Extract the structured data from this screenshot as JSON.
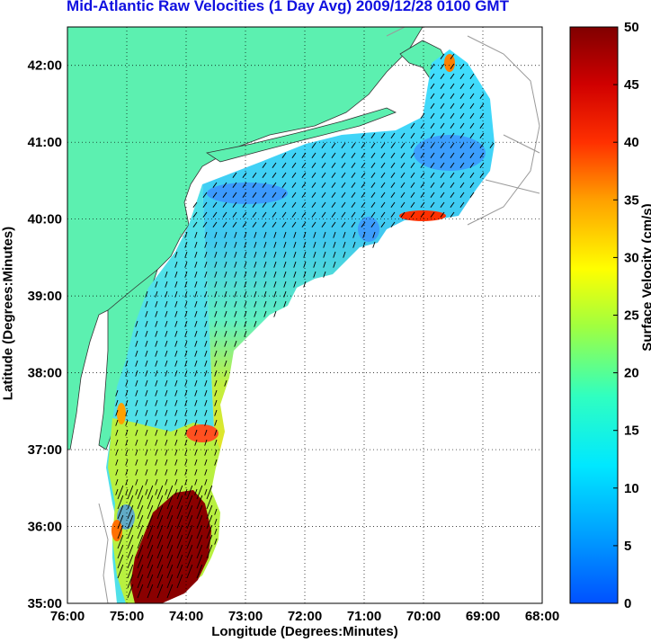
{
  "title": "Mid-Atlantic Raw Velocities (1 Day Avg) 2009/12/28 0100 GMT",
  "xlabel": "Longitude (Degrees:Minutes)",
  "ylabel": "Latitude (Degrees:Minutes)",
  "colorbar_label": "Surface Velocity (cm/s)",
  "map": {
    "x_ticks": [
      "76:00",
      "75:00",
      "74:00",
      "73:00",
      "72:00",
      "71:00",
      "70:00",
      "69:00",
      "68:00"
    ],
    "y_ticks": [
      "42:00",
      "41:00",
      "40:00",
      "39:00",
      "38:00",
      "37:00",
      "36:00",
      "35:00"
    ],
    "lon_range": [
      -76,
      -68
    ],
    "lat_range": [
      35,
      42.5
    ],
    "grid": "dotted",
    "land_color": "#5cf0b0",
    "ocean_color": "#ffffff"
  },
  "colorbar": {
    "ticks": [
      "0",
      "5",
      "10",
      "15",
      "20",
      "25",
      "30",
      "35",
      "40",
      "45",
      "50"
    ],
    "range": [
      0,
      50
    ],
    "colormap": "jet"
  }
}
